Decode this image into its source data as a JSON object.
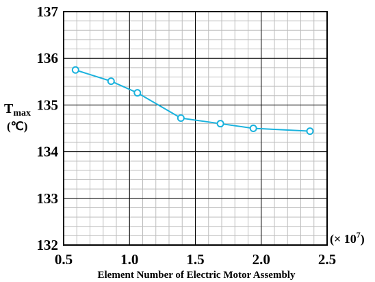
{
  "chart_data": {
    "type": "line",
    "title": "",
    "xlabel": "Element Number of Electric Motor Assembly",
    "x_multiplier": "(× 10",
    "x_multiplier_exponent": "7",
    "x_multiplier_close": ")",
    "ylabel_main": "T",
    "ylabel_sub": "max",
    "ylabel_unit": "(℃)",
    "xlim": [
      0.5,
      2.5
    ],
    "ylim": [
      132,
      137
    ],
    "x_ticks": [
      0.5,
      1.0,
      1.5,
      2.0,
      2.5
    ],
    "x_tick_labels": [
      "0.5",
      "1.0",
      "1.5",
      "2.0",
      "2.5"
    ],
    "y_ticks": [
      132,
      133,
      134,
      135,
      136,
      137
    ],
    "y_tick_labels": [
      "132",
      "133",
      "134",
      "135",
      "136",
      "137"
    ],
    "grid": true,
    "colors": {
      "series": "#1ab2dd",
      "major_grid": "#000000",
      "minor_grid": "#bdbdbd"
    },
    "series": [
      {
        "x": [
          0.59,
          0.86,
          1.06,
          1.39,
          1.69,
          1.94,
          2.37
        ],
        "y": [
          135.75,
          135.51,
          135.26,
          134.72,
          134.6,
          134.5,
          134.44
        ]
      }
    ]
  }
}
